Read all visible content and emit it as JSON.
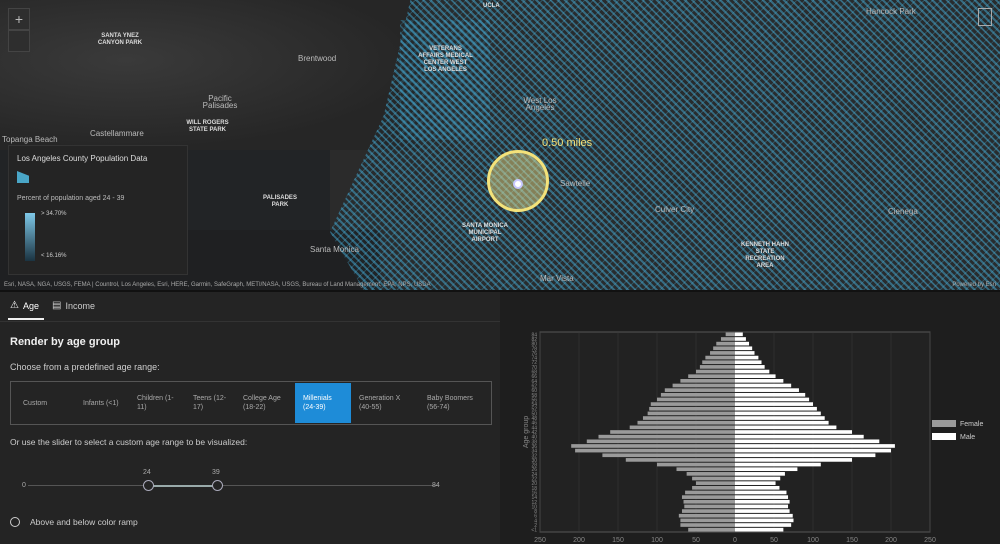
{
  "map": {
    "zoom_in_label": "+",
    "zoom_out_label": "",
    "radius_label": "0.50 miles",
    "labels": [
      {
        "text": "SANTA YNEZ CANYON PARK",
        "kind": "park"
      },
      {
        "text": "UCLA",
        "kind": "park"
      },
      {
        "text": "Hancock Park",
        "kind": "city"
      },
      {
        "text": "Brentwood",
        "kind": "city"
      },
      {
        "text": "VETERANS AFFAIRS MEDICAL CENTER WEST LOS ANGELES",
        "kind": "park"
      },
      {
        "text": "West Los Angeles",
        "kind": "city"
      },
      {
        "text": "Pacific Palisades",
        "kind": "city"
      },
      {
        "text": "Castellammare",
        "kind": "city"
      },
      {
        "text": "WILL ROGERS STATE PARK",
        "kind": "park"
      },
      {
        "text": "PALISADES PARK",
        "kind": "park"
      },
      {
        "text": "SANTA MONICA MUNICIPAL AIRPORT",
        "kind": "park"
      },
      {
        "text": "Sawtelle",
        "kind": "city"
      },
      {
        "text": "Culver City",
        "kind": "city"
      },
      {
        "text": "Cienega",
        "kind": "city"
      },
      {
        "text": "KENNETH HAHN STATE RECREATION AREA",
        "kind": "park"
      },
      {
        "text": "Mar Vista",
        "kind": "city"
      },
      {
        "text": "Santa Monica",
        "kind": "city"
      },
      {
        "text": "Topanga Beach",
        "kind": "city"
      }
    ],
    "attribution": "Esri, NASA, NGA, USGS, FEMA | Countrol, Los Angeles, Esri, HERE, Garmin, SafeGraph, METI/NASA, USGS, Bureau of Land Management, EPA, NPS, USDA",
    "powered_by": "Powered by Esri"
  },
  "legend": {
    "title": "Los Angeles County Population Data",
    "subtitle": "Percent of population aged 24 - 39",
    "high": "> 34.70%",
    "low": "< 16.16%",
    "ramp_top": "#7ec8e8",
    "ramp_bottom": "#1b3341"
  },
  "tabs": [
    {
      "label": "Age",
      "icon": "age-icon",
      "active": true
    },
    {
      "label": "Income",
      "icon": "income-icon",
      "active": false
    }
  ],
  "panel": {
    "heading": "Render by age group",
    "choose_label": "Choose from a predefined age range:",
    "segments": [
      {
        "label": "Custom",
        "selected": false
      },
      {
        "label": "Infants (<1)",
        "selected": false
      },
      {
        "label": "Children (1-11)",
        "selected": false
      },
      {
        "label": "Teens (12-17)",
        "selected": false
      },
      {
        "label": "College Age (18-22)",
        "selected": false
      },
      {
        "label": "Millenials (24-39)",
        "selected": true
      },
      {
        "label": "Generation X (40-55)",
        "selected": false
      },
      {
        "label": "Baby Boomers (56-74)",
        "selected": false
      }
    ],
    "slider_label": "Or use the slider to select a custom age range to be visualized:",
    "slider": {
      "min": "0",
      "max": "84",
      "low": "24",
      "high": "39",
      "min_value": 0,
      "max_value": 84,
      "low_value": 24,
      "high_value": 39
    },
    "radio_label": "Above and below color ramp"
  },
  "chart_data": {
    "type": "bar",
    "orientation": "horizontal",
    "ylabel": "Age group",
    "y_ticks": [
      "<1",
      "2",
      "4",
      "6",
      "8",
      "10",
      "12",
      "14",
      "16",
      "18",
      "20",
      "22",
      "24",
      "26",
      "28",
      "30",
      "32",
      "34",
      "36",
      "38",
      "40",
      "42",
      "44",
      "46",
      "48",
      "50",
      "52",
      "54",
      "56",
      "58",
      "60",
      "62",
      "64",
      "66",
      "68",
      "70",
      "72",
      "74",
      "76",
      "78",
      "80",
      "82",
      "84"
    ],
    "x_ticks": [
      "250",
      "200",
      "150",
      "100",
      "50",
      "0",
      "50",
      "100",
      "150",
      "200",
      "250"
    ],
    "xlim": [
      -250,
      250
    ],
    "series": [
      {
        "name": "Female",
        "color": "#9a9a9a",
        "values": [
          60,
          70,
          70,
          72,
          68,
          65,
          66,
          68,
          64,
          55,
          50,
          55,
          62,
          75,
          100,
          140,
          170,
          205,
          210,
          190,
          175,
          160,
          135,
          125,
          118,
          112,
          110,
          108,
          100,
          95,
          90,
          80,
          70,
          60,
          50,
          45,
          42,
          38,
          32,
          28,
          24,
          18,
          12
        ]
      },
      {
        "name": "Male",
        "color": "#ffffff",
        "values": [
          62,
          72,
          75,
          74,
          70,
          68,
          70,
          68,
          66,
          57,
          52,
          58,
          64,
          80,
          110,
          150,
          180,
          200,
          205,
          185,
          165,
          150,
          130,
          120,
          115,
          110,
          105,
          100,
          95,
          90,
          82,
          72,
          62,
          52,
          44,
          38,
          34,
          30,
          25,
          22,
          18,
          14,
          10
        ]
      }
    ],
    "legend_position": "right"
  }
}
